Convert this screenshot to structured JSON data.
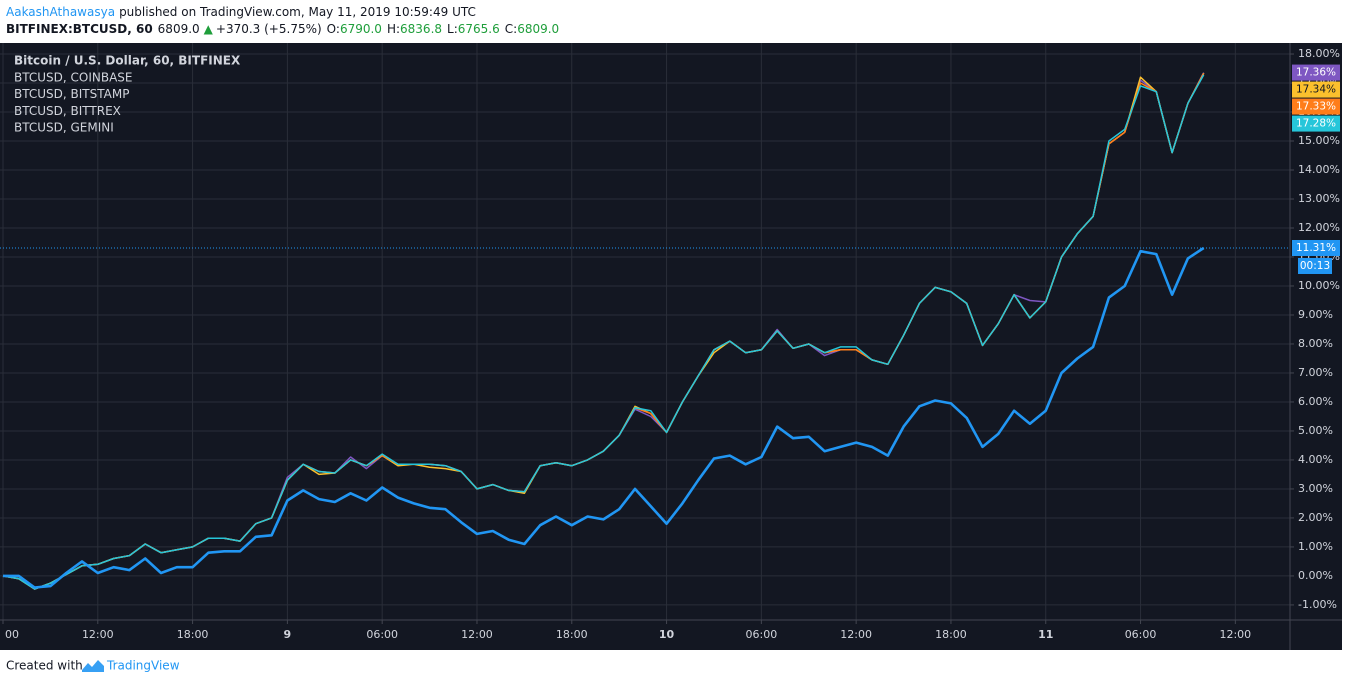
{
  "header": {
    "author": "AakashAthawasya",
    "published": "published on TradingView.com, May 11, 2019 10:59:49 UTC",
    "symbol": "BITFINEX:BTCUSD, 60",
    "price": "6809.0",
    "arrow": "▲",
    "change": "+370.3 (+5.75%)",
    "ohlc": [
      {
        "label": "O:",
        "value": "6790.0"
      },
      {
        "label": "H:",
        "value": "6836.8"
      },
      {
        "label": "L:",
        "value": "6765.6"
      },
      {
        "label": "C:",
        "value": "6809.0"
      }
    ]
  },
  "footer": {
    "created": "Created with",
    "brand": "TradingView"
  },
  "chart_data": {
    "type": "line",
    "grid": true,
    "countdown": "00:13",
    "xlim": [
      -0.19,
      81.46
    ],
    "ylim": [
      -1.52,
      18.38
    ],
    "xticks": [
      {
        "value": 0,
        "label": "00"
      },
      {
        "value": 6,
        "label": "12:00"
      },
      {
        "value": 12,
        "label": "18:00"
      },
      {
        "value": 18,
        "label": "9"
      },
      {
        "value": 24,
        "label": "06:00"
      },
      {
        "value": 30,
        "label": "12:00"
      },
      {
        "value": 36,
        "label": "18:00"
      },
      {
        "value": 42,
        "label": "10"
      },
      {
        "value": 48,
        "label": "06:00"
      },
      {
        "value": 54,
        "label": "12:00"
      },
      {
        "value": 60,
        "label": "18:00"
      },
      {
        "value": 66,
        "label": "11"
      },
      {
        "value": 72,
        "label": "06:00"
      },
      {
        "value": 78,
        "label": "12:00"
      }
    ],
    "yticks": [
      {
        "value": -1,
        "label": "-1.00%"
      },
      {
        "value": 0,
        "label": "0.00%"
      },
      {
        "value": 1,
        "label": "1.00%"
      },
      {
        "value": 2,
        "label": "2.00%"
      },
      {
        "value": 3,
        "label": "3.00%"
      },
      {
        "value": 4,
        "label": "4.00%"
      },
      {
        "value": 5,
        "label": "5.00%"
      },
      {
        "value": 6,
        "label": "6.00%"
      },
      {
        "value": 7,
        "label": "7.00%"
      },
      {
        "value": 8,
        "label": "8.00%"
      },
      {
        "value": 9,
        "label": "9.00%"
      },
      {
        "value": 10,
        "label": "10.00%"
      },
      {
        "value": 11,
        "label": "11.00%"
      },
      {
        "value": 12,
        "label": "12.00%"
      },
      {
        "value": 13,
        "label": "13.00%"
      },
      {
        "value": 14,
        "label": "14.00%"
      },
      {
        "value": 15,
        "label": "15.00%"
      },
      {
        "value": 16,
        "label": "16.00%"
      },
      {
        "value": 17,
        "label": "17.00%"
      },
      {
        "value": 18,
        "label": "18.00%"
      }
    ],
    "series": [
      {
        "name": "Bitcoin / U.S. Dollar, 60, BITFINEX",
        "color": "#2196f3",
        "last_label": "11.31%",
        "values": [
          0,
          0,
          -0.4,
          -0.35,
          0.1,
          0.5,
          0.1,
          0.3,
          0.2,
          0.6,
          0.1,
          0.3,
          0.3,
          0.8,
          0.85,
          0.85,
          1.35,
          1.4,
          2.6,
          2.95,
          2.65,
          2.55,
          2.85,
          2.6,
          3.05,
          2.7,
          2.5,
          2.35,
          2.3,
          1.85,
          1.45,
          1.55,
          1.25,
          1.1,
          1.75,
          2.05,
          1.75,
          2.05,
          1.95,
          2.3,
          3.0,
          2.4,
          1.8,
          2.5,
          3.3,
          4.05,
          4.15,
          3.85,
          4.1,
          5.15,
          4.75,
          4.8,
          4.3,
          4.45,
          4.6,
          4.45,
          4.15,
          5.15,
          5.85,
          6.05,
          5.95,
          5.45,
          4.45,
          4.9,
          5.7,
          5.25,
          5.7,
          7.0,
          7.5,
          7.9,
          9.6,
          10.0,
          11.2,
          11.1,
          9.7,
          10.95,
          11.31
        ]
      },
      {
        "name": "BTCUSD, COINBASE",
        "color": "#7e57c2",
        "last_label": "17.36%",
        "values": [
          0,
          -0.1,
          -0.45,
          -0.25,
          0.05,
          0.35,
          0.4,
          0.6,
          0.7,
          1.1,
          0.8,
          0.9,
          1.0,
          1.3,
          1.3,
          1.2,
          1.8,
          2.0,
          3.4,
          3.85,
          3.6,
          3.55,
          4.1,
          3.7,
          4.15,
          3.85,
          3.85,
          3.85,
          3.8,
          3.6,
          3.0,
          3.15,
          2.95,
          2.9,
          3.8,
          3.9,
          3.8,
          4.0,
          4.3,
          4.85,
          5.75,
          5.5,
          4.95,
          6.0,
          6.9,
          7.8,
          8.1,
          7.7,
          7.8,
          8.5,
          7.85,
          8.0,
          7.6,
          7.8,
          7.8,
          7.45,
          7.3,
          8.3,
          9.4,
          9.95,
          9.8,
          9.4,
          7.95,
          8.7,
          9.7,
          9.5,
          9.45,
          11.0,
          11.8,
          12.4,
          14.9,
          15.3,
          17.1,
          16.7,
          14.6,
          16.3,
          17.36
        ]
      },
      {
        "name": "BTCUSD, BITSTAMP",
        "color": "#fbc02d",
        "last_label": "17.34%",
        "values": [
          0,
          -0.1,
          -0.45,
          -0.25,
          0.05,
          0.35,
          0.4,
          0.6,
          0.7,
          1.1,
          0.8,
          0.9,
          1.0,
          1.3,
          1.3,
          1.2,
          1.8,
          2.0,
          3.3,
          3.85,
          3.5,
          3.55,
          4.0,
          3.8,
          4.15,
          3.8,
          3.85,
          3.75,
          3.7,
          3.6,
          3.0,
          3.15,
          2.95,
          2.85,
          3.8,
          3.9,
          3.8,
          4.0,
          4.3,
          4.85,
          5.85,
          5.6,
          4.95,
          6.0,
          6.9,
          7.7,
          8.1,
          7.7,
          7.8,
          8.45,
          7.85,
          8.0,
          7.7,
          7.8,
          7.8,
          7.45,
          7.3,
          8.3,
          9.4,
          9.95,
          9.8,
          9.4,
          7.95,
          8.7,
          9.7,
          8.9,
          9.45,
          11.0,
          11.8,
          12.4,
          14.9,
          15.3,
          17.2,
          16.7,
          14.6,
          16.3,
          17.34
        ]
      },
      {
        "name": "BTCUSD, BITTREX",
        "color": "#ff7d1a",
        "last_label": "17.33%",
        "values": [
          0,
          -0.1,
          -0.45,
          -0.25,
          0.05,
          0.35,
          0.4,
          0.6,
          0.7,
          1.1,
          0.8,
          0.9,
          1.0,
          1.3,
          1.3,
          1.2,
          1.8,
          2.0,
          3.3,
          3.85,
          3.6,
          3.55,
          4.0,
          3.8,
          4.15,
          3.85,
          3.85,
          3.85,
          3.8,
          3.6,
          3.0,
          3.15,
          2.95,
          2.9,
          3.8,
          3.9,
          3.8,
          4.0,
          4.3,
          4.85,
          5.8,
          5.6,
          4.95,
          6.0,
          6.9,
          7.8,
          8.1,
          7.7,
          7.8,
          8.45,
          7.85,
          8.0,
          7.7,
          7.8,
          7.8,
          7.45,
          7.3,
          8.3,
          9.4,
          9.95,
          9.8,
          9.4,
          7.95,
          8.7,
          9.7,
          8.9,
          9.45,
          11.0,
          11.8,
          12.4,
          14.9,
          15.3,
          17.0,
          16.7,
          14.6,
          16.3,
          17.33
        ]
      },
      {
        "name": "BTCUSD, GEMINI",
        "color": "#26c6da",
        "last_label": "17.28%",
        "values": [
          0,
          -0.1,
          -0.45,
          -0.25,
          0.05,
          0.35,
          0.4,
          0.6,
          0.7,
          1.1,
          0.8,
          0.9,
          1.0,
          1.3,
          1.3,
          1.2,
          1.8,
          2.0,
          3.3,
          3.85,
          3.6,
          3.55,
          4.0,
          3.8,
          4.2,
          3.85,
          3.85,
          3.85,
          3.8,
          3.6,
          3.0,
          3.15,
          2.95,
          2.9,
          3.8,
          3.9,
          3.8,
          4.0,
          4.3,
          4.85,
          5.8,
          5.7,
          4.95,
          6.0,
          6.9,
          7.8,
          8.1,
          7.7,
          7.8,
          8.45,
          7.85,
          8.0,
          7.7,
          7.9,
          7.9,
          7.45,
          7.3,
          8.3,
          9.4,
          9.95,
          9.8,
          9.4,
          7.95,
          8.7,
          9.7,
          8.9,
          9.45,
          11.0,
          11.8,
          12.4,
          15.0,
          15.4,
          16.9,
          16.7,
          14.6,
          16.3,
          17.28
        ]
      }
    ]
  }
}
